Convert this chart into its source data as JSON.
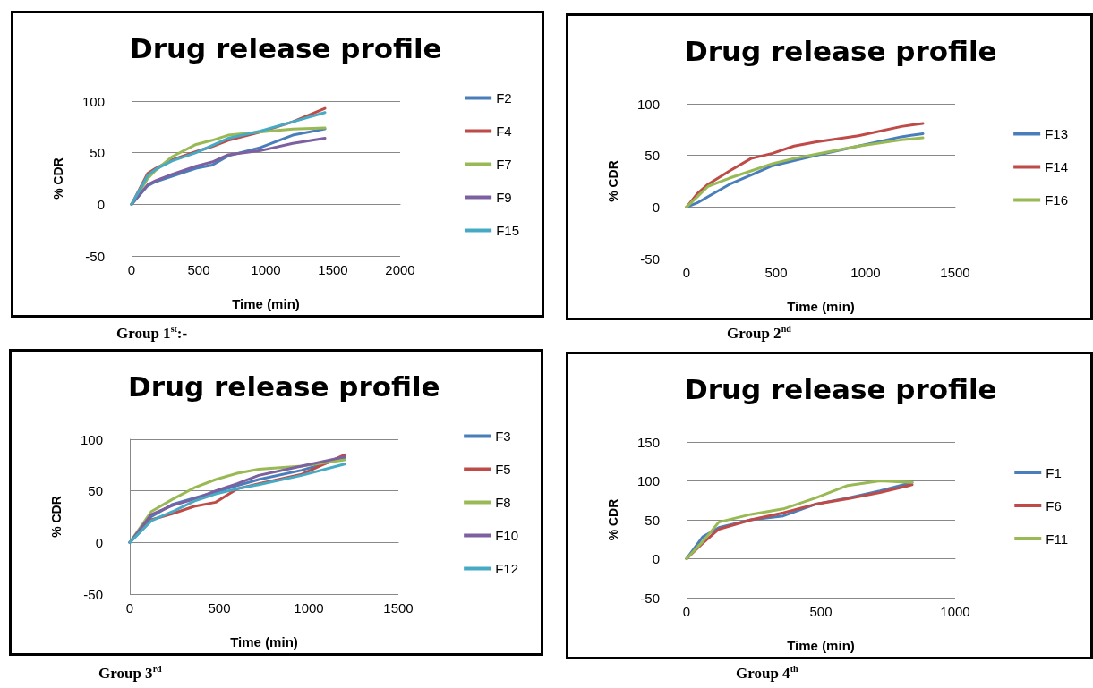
{
  "chart_data": [
    {
      "type": "line",
      "title": "Drug release profile",
      "xlabel": "Time (min)",
      "ylabel": "% CDR",
      "xlim": [
        0,
        2000
      ],
      "xticks": [
        0,
        500,
        1000,
        1500,
        2000
      ],
      "ylim": [
        -50,
        100
      ],
      "yticks": [
        -50,
        0,
        50,
        100
      ],
      "grid": "y",
      "legend": "right",
      "marker": "none",
      "line_style": "solid",
      "annotations": [
        "Group 1$^{st}$:-"
      ],
      "x": [
        0,
        120,
        180,
        300,
        480,
        600,
        720,
        960,
        1200,
        1440
      ],
      "series": [
        {
          "name": "F2",
          "color": "#4a7ebb",
          "values": [
            0,
            18,
            22,
            27,
            35,
            38,
            47,
            55,
            67,
            73
          ]
        },
        {
          "name": "F4",
          "color": "#be4b48",
          "values": [
            0,
            30,
            35,
            43,
            51,
            56,
            62,
            70,
            80,
            93
          ]
        },
        {
          "name": "F7",
          "color": "#98b954",
          "values": [
            0,
            25,
            33,
            46,
            58,
            62,
            67,
            70,
            73,
            74
          ]
        },
        {
          "name": "F9",
          "color": "#7d60a0",
          "values": [
            0,
            19,
            23,
            29,
            37,
            41,
            48,
            52,
            59,
            64
          ]
        },
        {
          "name": "F15",
          "color": "#46aac5",
          "values": [
            0,
            28,
            34,
            42,
            50,
            57,
            64,
            71,
            80,
            89
          ]
        }
      ]
    },
    {
      "type": "line",
      "title": "Drug release profile",
      "xlabel": "Time (min)",
      "ylabel": "% CDR",
      "xlim": [
        0,
        1500
      ],
      "xticks": [
        0,
        500,
        1000,
        1500
      ],
      "ylim": [
        -50,
        100
      ],
      "yticks": [
        -50,
        0,
        50,
        100
      ],
      "grid": "y",
      "legend": "right",
      "marker": "none",
      "line_style": "solid",
      "annotations": [
        "Group 2$^{nd}$"
      ],
      "x": [
        0,
        60,
        120,
        240,
        360,
        480,
        600,
        720,
        960,
        1200,
        1320
      ],
      "series": [
        {
          "name": "F13",
          "color": "#4a7ebb",
          "values": [
            0,
            4,
            10,
            22,
            31,
            40,
            45,
            50,
            59,
            68,
            71
          ]
        },
        {
          "name": "F14",
          "color": "#be4b48",
          "values": [
            0,
            13,
            22,
            35,
            47,
            52,
            59,
            63,
            69,
            78,
            81
          ]
        },
        {
          "name": "F16",
          "color": "#98b954",
          "values": [
            0,
            10,
            20,
            28,
            35,
            42,
            47,
            51,
            59,
            65,
            67
          ]
        }
      ]
    },
    {
      "type": "line",
      "title": "Drug release profile",
      "xlabel": "Time (min)",
      "ylabel": "% CDR",
      "xlim": [
        0,
        1500
      ],
      "xticks": [
        0,
        500,
        1000,
        1500
      ],
      "ylim": [
        -50,
        100
      ],
      "yticks": [
        -50,
        0,
        50,
        100
      ],
      "grid": "y",
      "legend": "right",
      "marker": "none",
      "line_style": "solid",
      "annotations": [
        "Group 3$^{rd}$"
      ],
      "x": [
        0,
        120,
        240,
        360,
        480,
        600,
        720,
        960,
        1200
      ],
      "series": [
        {
          "name": "F3",
          "color": "#4a7ebb",
          "values": [
            0,
            25,
            37,
            43,
            49,
            55,
            61,
            70,
            82
          ]
        },
        {
          "name": "F5",
          "color": "#be4b48",
          "values": [
            0,
            22,
            28,
            35,
            39,
            52,
            57,
            66,
            85
          ]
        },
        {
          "name": "F8",
          "color": "#98b954",
          "values": [
            0,
            30,
            42,
            53,
            61,
            67,
            71,
            74,
            80
          ]
        },
        {
          "name": "F10",
          "color": "#7d60a0",
          "values": [
            0,
            27,
            36,
            42,
            50,
            57,
            65,
            74,
            83
          ]
        },
        {
          "name": "F12",
          "color": "#46aac5",
          "values": [
            0,
            21,
            30,
            40,
            47,
            52,
            56,
            65,
            76
          ]
        }
      ]
    },
    {
      "type": "line",
      "title": "Drug release profile",
      "xlabel": "Time (min)",
      "ylabel": "% CDR",
      "xlim": [
        0,
        1000
      ],
      "xticks": [
        0,
        500,
        1000
      ],
      "ylim": [
        -50,
        150
      ],
      "yticks": [
        -50,
        0,
        50,
        100,
        150
      ],
      "grid": "y",
      "legend": "right",
      "marker": "none",
      "line_style": "solid",
      "annotations": [
        "Group 4$^{th}$"
      ],
      "x": [
        0,
        60,
        120,
        240,
        360,
        480,
        600,
        720,
        840
      ],
      "series": [
        {
          "name": "F1",
          "color": "#4a7ebb",
          "values": [
            0,
            28,
            40,
            50,
            55,
            70,
            78,
            87,
            98
          ]
        },
        {
          "name": "F6",
          "color": "#be4b48",
          "values": [
            0,
            20,
            38,
            50,
            59,
            70,
            77,
            85,
            95
          ]
        },
        {
          "name": "F11",
          "color": "#98b954",
          "values": [
            0,
            22,
            47,
            57,
            64,
            78,
            94,
            100,
            98
          ]
        }
      ]
    }
  ]
}
